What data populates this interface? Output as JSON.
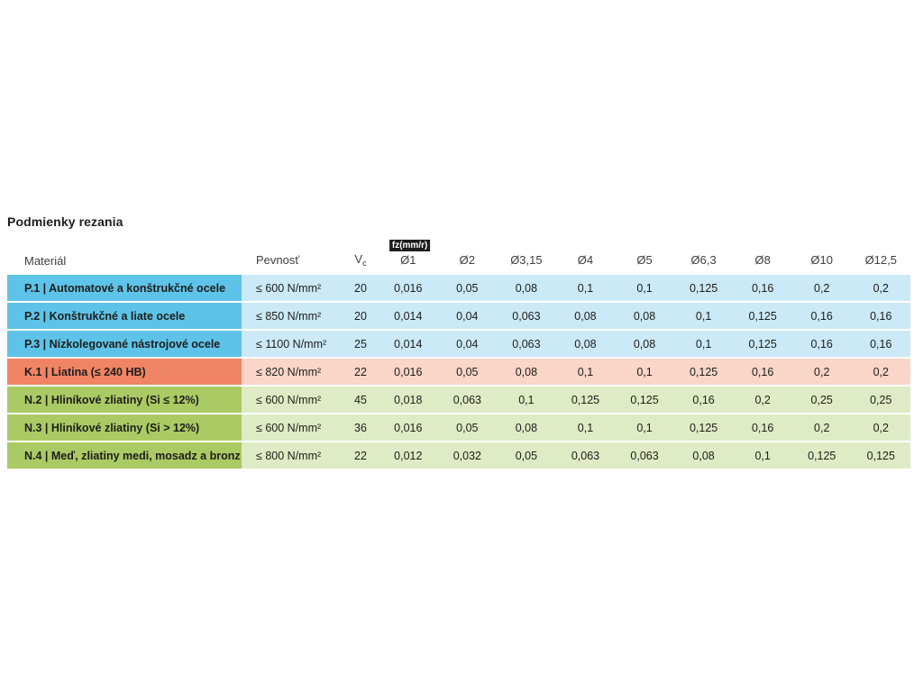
{
  "page": {
    "title": "Podmienky rezania"
  },
  "table": {
    "fz_badge": "fz(mm/r)",
    "headers": {
      "material": "Materiál",
      "pevnost": "Pevnosť",
      "vc_main": "V",
      "vc_sub": "c",
      "diameters": [
        "Ø1",
        "Ø2",
        "Ø3,15",
        "Ø4",
        "Ø5",
        "Ø6,3",
        "Ø8",
        "Ø10",
        "Ø12,5"
      ]
    },
    "group_colors": {
      "P": {
        "strong": "#5ec3e8",
        "light": "#cbe9f7"
      },
      "K": {
        "strong": "#f08465",
        "light": "#fad6c8"
      },
      "N": {
        "strong": "#aacb64",
        "light": "#deebc5"
      }
    },
    "rows": [
      {
        "group": "P",
        "material": "P.1 | Automatové a konštrukčné ocele",
        "pevnost": "≤ 600 N/mm²",
        "vc": "20",
        "values": [
          "0,016",
          "0,05",
          "0,08",
          "0,1",
          "0,1",
          "0,125",
          "0,16",
          "0,2",
          "0,2"
        ]
      },
      {
        "group": "P",
        "material": "P.2 | Konštrukčné a liate ocele",
        "pevnost": "≤ 850 N/mm²",
        "vc": "20",
        "values": [
          "0,014",
          "0,04",
          "0,063",
          "0,08",
          "0,08",
          "0,1",
          "0,125",
          "0,16",
          "0,16"
        ]
      },
      {
        "group": "P",
        "material": "P.3 | Nízkolegované nástrojové ocele",
        "pevnost": "≤ 1100 N/mm²",
        "vc": "25",
        "values": [
          "0,014",
          "0,04",
          "0,063",
          "0,08",
          "0,08",
          "0,1",
          "0,125",
          "0,16",
          "0,16"
        ]
      },
      {
        "group": "K",
        "material": "K.1 | Liatina (≤ 240 HB)",
        "pevnost": "≤ 820 N/mm²",
        "vc": "22",
        "values": [
          "0,016",
          "0,05",
          "0,08",
          "0,1",
          "0,1",
          "0,125",
          "0,16",
          "0,2",
          "0,2"
        ]
      },
      {
        "group": "N",
        "material": "N.2 | Hliníkové zliatiny (Si ≤ 12%)",
        "pevnost": "≤ 600 N/mm²",
        "vc": "45",
        "values": [
          "0,018",
          "0,063",
          "0,1",
          "0,125",
          "0,125",
          "0,16",
          "0,2",
          "0,25",
          "0,25"
        ]
      },
      {
        "group": "N",
        "material": "N.3 | Hliníkové zliatiny (Si > 12%)",
        "pevnost": "≤ 600 N/mm²",
        "vc": "36",
        "values": [
          "0,016",
          "0,05",
          "0,08",
          "0,1",
          "0,1",
          "0,125",
          "0,16",
          "0,2",
          "0,2"
        ]
      },
      {
        "group": "N",
        "material": "N.4 | Meď, zliatiny medi, mosadz a bronz",
        "pevnost": "≤ 800 N/mm²",
        "vc": "22",
        "values": [
          "0,012",
          "0,032",
          "0,05",
          "0,063",
          "0,063",
          "0,08",
          "0,1",
          "0,125",
          "0,125"
        ]
      }
    ]
  }
}
